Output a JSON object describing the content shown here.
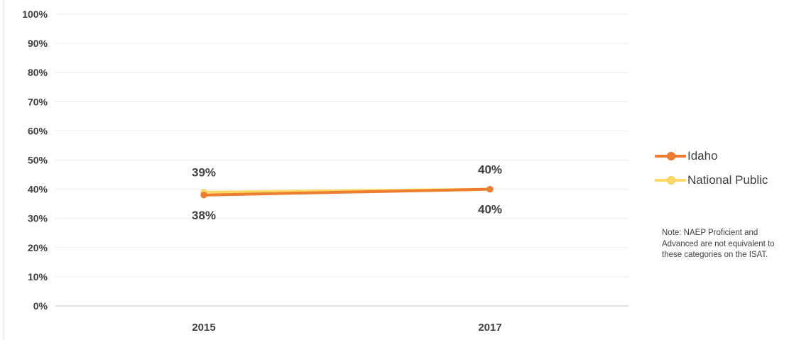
{
  "chart_data": {
    "type": "line",
    "categories": [
      "2015",
      "2017"
    ],
    "series": [
      {
        "name": "Idaho",
        "values": [
          38,
          40
        ],
        "labels": [
          "38%",
          "40%"
        ],
        "color": "#ED7D31"
      },
      {
        "name": "National Public",
        "values": [
          39,
          40
        ],
        "labels": [
          "39%",
          "40%"
        ],
        "color": "#FFD966"
      }
    ],
    "y_ticks": [
      "0%",
      "10%",
      "20%",
      "30%",
      "40%",
      "50%",
      "60%",
      "70%",
      "80%",
      "90%",
      "100%"
    ],
    "ylim": [
      0,
      100
    ],
    "grid": true,
    "legend_position": "right",
    "note": "Note: NAEP Proficient and Advanced are not equivalent to these categories on the ISAT."
  },
  "colors": {
    "gridline": "#ececec",
    "axis": "#bfbfbf",
    "tick_text": "#404040",
    "data_label_text": "#404040"
  }
}
